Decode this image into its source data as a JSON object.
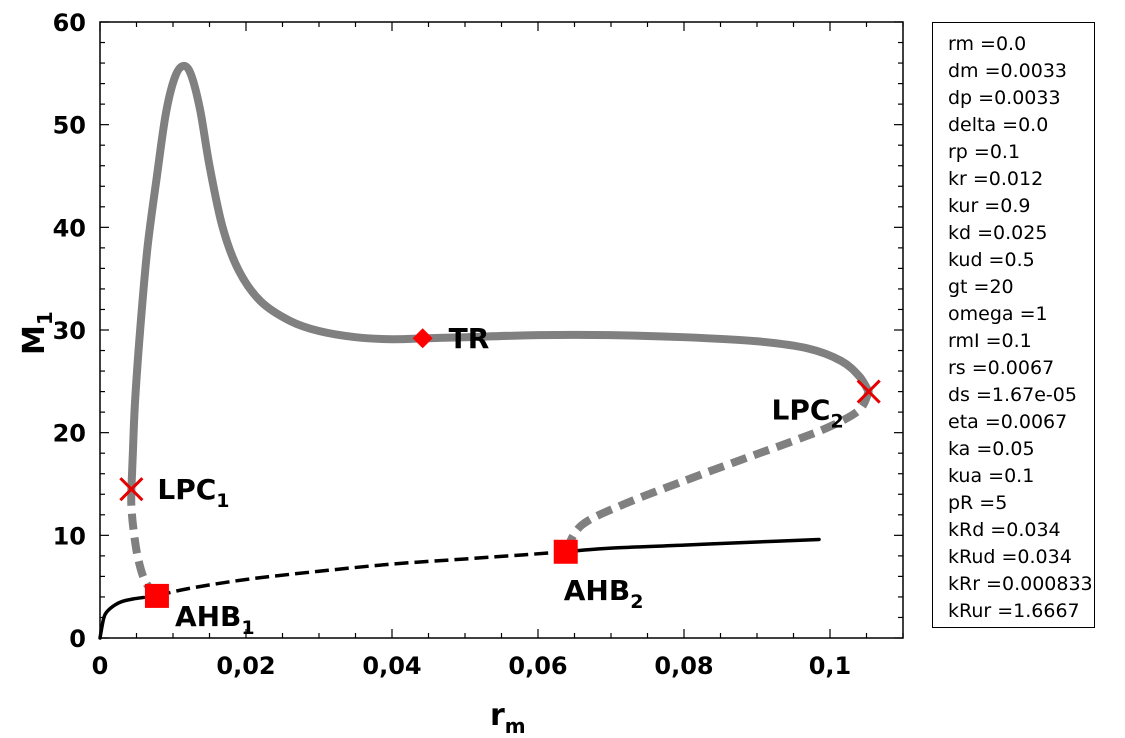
{
  "chart_data": {
    "type": "line",
    "xlabel": "r",
    "xlabel_sub": "m",
    "ylabel": "M",
    "ylabel_sub": "1",
    "xlim": [
      0,
      0.11
    ],
    "ylim": [
      0,
      60
    ],
    "x_ticks": [
      {
        "value": 0,
        "label": "0"
      },
      {
        "value": 0.02,
        "label": "0,02"
      },
      {
        "value": 0.04,
        "label": "0,04"
      },
      {
        "value": 0.06,
        "label": "0,06"
      },
      {
        "value": 0.08,
        "label": "0,08"
      },
      {
        "value": 0.1,
        "label": "0,1"
      }
    ],
    "y_ticks": [
      {
        "value": 0,
        "label": "0"
      },
      {
        "value": 10,
        "label": "10"
      },
      {
        "value": 20,
        "label": "20"
      },
      {
        "value": 30,
        "label": "30"
      },
      {
        "value": 40,
        "label": "40"
      },
      {
        "value": 50,
        "label": "50"
      },
      {
        "value": 60,
        "label": "60"
      }
    ],
    "grid": false,
    "series": [
      {
        "style": "black-solid",
        "color": "#000000",
        "points": [
          [
            0,
            0
          ],
          [
            0.0005,
            1.9
          ],
          [
            0.001,
            2.6
          ],
          [
            0.002,
            3.2
          ],
          [
            0.003,
            3.55
          ],
          [
            0.0045,
            3.8
          ],
          [
            0.006,
            3.95
          ]
        ]
      },
      {
        "style": "black-dashed",
        "color": "#000000",
        "points": [
          [
            0.0078,
            4.1
          ],
          [
            0.012,
            4.8
          ],
          [
            0.02,
            5.7
          ],
          [
            0.03,
            6.5
          ],
          [
            0.04,
            7.2
          ],
          [
            0.05,
            7.7
          ],
          [
            0.058,
            8.1
          ],
          [
            0.0638,
            8.4
          ]
        ]
      },
      {
        "style": "black-solid",
        "color": "#000000",
        "points": [
          [
            0.0638,
            8.4
          ],
          [
            0.07,
            8.75
          ],
          [
            0.08,
            9.05
          ],
          [
            0.09,
            9.35
          ],
          [
            0.0985,
            9.6
          ]
        ]
      },
      {
        "style": "gray-dashed",
        "color": "#808080",
        "points": [
          [
            0.0078,
            4.1
          ],
          [
            0.0062,
            5.5
          ],
          [
            0.0052,
            7.8
          ],
          [
            0.0046,
            10.5
          ],
          [
            0.0043,
            12.8
          ],
          [
            0.0043,
            14.5
          ]
        ]
      },
      {
        "style": "gray-solid",
        "color": "#808080",
        "points": [
          [
            0.0043,
            14.5
          ],
          [
            0.0045,
            18
          ],
          [
            0.0048,
            23
          ],
          [
            0.0055,
            30
          ],
          [
            0.0065,
            38
          ],
          [
            0.0078,
            45
          ],
          [
            0.009,
            51
          ],
          [
            0.0102,
            54.5
          ],
          [
            0.0113,
            55.7
          ],
          [
            0.0124,
            55
          ],
          [
            0.0137,
            51.5
          ],
          [
            0.015,
            46
          ],
          [
            0.0168,
            40
          ],
          [
            0.019,
            35.8
          ],
          [
            0.022,
            32.8
          ],
          [
            0.026,
            30.9
          ],
          [
            0.03,
            29.9
          ],
          [
            0.035,
            29.3
          ],
          [
            0.04,
            29.1
          ],
          [
            0.045,
            29.2
          ],
          [
            0.05,
            29.3
          ],
          [
            0.06,
            29.5
          ],
          [
            0.07,
            29.5
          ],
          [
            0.08,
            29.3
          ],
          [
            0.09,
            28.9
          ],
          [
            0.097,
            28.2
          ],
          [
            0.1015,
            27
          ],
          [
            0.104,
            25.5
          ],
          [
            0.1053,
            24
          ]
        ]
      },
      {
        "style": "gray-dashed",
        "color": "#808080",
        "points": [
          [
            0.1053,
            24
          ],
          [
            0.104,
            22.2
          ],
          [
            0.1,
            20.6
          ],
          [
            0.095,
            19.2
          ],
          [
            0.088,
            17.4
          ],
          [
            0.08,
            15.3
          ],
          [
            0.072,
            13.1
          ],
          [
            0.066,
            11
          ],
          [
            0.0638,
            8.4
          ]
        ]
      }
    ],
    "markers": [
      {
        "name": "LPC",
        "sub": "1",
        "x": 0.0043,
        "y": 14.5,
        "shape": "cross",
        "color": "#e60000",
        "label_pos": "right"
      },
      {
        "name": "AHB",
        "sub": "1",
        "x": 0.0078,
        "y": 4.1,
        "shape": "square",
        "color": "#ff0000",
        "label_pos": "below-right"
      },
      {
        "name": "TR",
        "sub": "",
        "x": 0.0442,
        "y": 29.2,
        "shape": "diamond",
        "color": "#ff0000",
        "label_pos": "right"
      },
      {
        "name": "AHB",
        "sub": "2",
        "x": 0.0638,
        "y": 8.4,
        "shape": "square",
        "color": "#ff0000",
        "label_pos": "below"
      },
      {
        "name": "LPC",
        "sub": "2",
        "x": 0.1053,
        "y": 24,
        "shape": "cross",
        "color": "#e60000",
        "label_pos": "left"
      }
    ]
  },
  "parameters": [
    "rm =0.0",
    "dm =0.0033",
    "dp =0.0033",
    "delta =0.0",
    "rp =0.1",
    "kr =0.012",
    "kur =0.9",
    "kd =0.025",
    "kud =0.5",
    "gt =20",
    "omega =1",
    "rmI =0.1",
    "rs =0.0067",
    "ds =1.67e-05",
    "eta =0.0067",
    "ka =0.05",
    "kua =0.1",
    "pR =5",
    "kRd =0.034",
    "kRud =0.034",
    "kRr =0.000833",
    "kRur =1.6667"
  ]
}
